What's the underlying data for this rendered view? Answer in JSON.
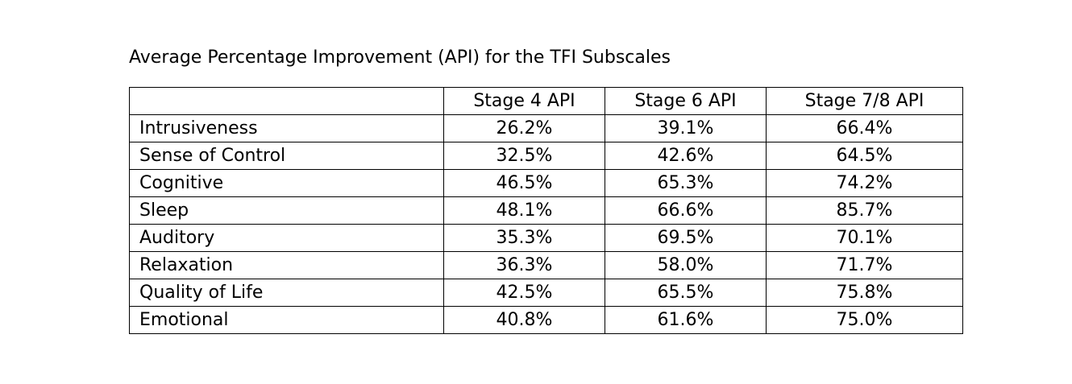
{
  "caption": "Average Percentage Improvement (API) for the TFI Subscales",
  "table": {
    "headers": [
      "",
      "Stage 4 API",
      "Stage 6 API",
      "Stage 7/8 API"
    ],
    "rows": [
      {
        "label": "Intrusiveness",
        "values": [
          "26.2%",
          "39.1%",
          "66.4%"
        ]
      },
      {
        "label": "Sense of Control",
        "values": [
          "32.5%",
          "42.6%",
          "64.5%"
        ]
      },
      {
        "label": "Cognitive",
        "values": [
          "46.5%",
          "65.3%",
          "74.2%"
        ]
      },
      {
        "label": "Sleep",
        "values": [
          "48.1%",
          "66.6%",
          "85.7%"
        ]
      },
      {
        "label": "Auditory",
        "values": [
          "35.3%",
          "69.5%",
          "70.1%"
        ]
      },
      {
        "label": "Relaxation",
        "values": [
          "36.3%",
          "58.0%",
          "71.7%"
        ]
      },
      {
        "label": "Quality of Life",
        "values": [
          "42.5%",
          "65.5%",
          "75.8%"
        ]
      },
      {
        "label": "Emotional",
        "values": [
          "40.8%",
          "61.6%",
          "75.0%"
        ]
      }
    ]
  }
}
